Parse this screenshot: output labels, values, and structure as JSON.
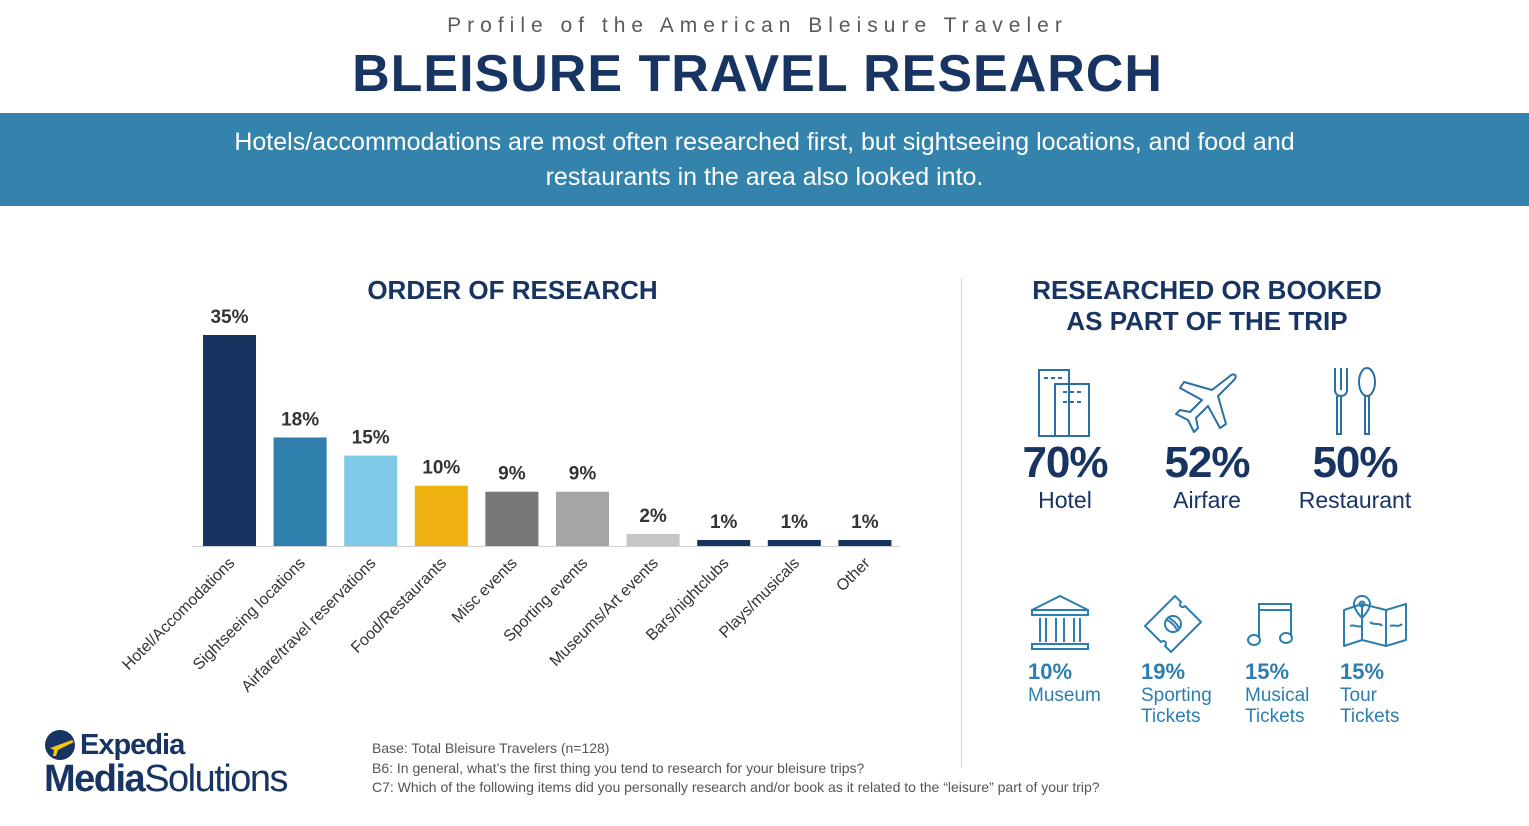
{
  "header": {
    "subtitle": "Profile of the American Bleisure Traveler",
    "title": "BLEISURE TRAVEL RESEARCH"
  },
  "banner": {
    "text": "Hotels/accommodations are most often researched first, but sightseeing locations, and food and restaurants in the area also looked into."
  },
  "chart_data": {
    "type": "bar",
    "title": "ORDER OF RESEARCH",
    "categories": [
      "Hotel/Accomodations",
      "Sightseeing locations",
      "Airfare/travel reservations",
      "Food/Restaurants",
      "Misc events",
      "Sporting events",
      "Museums/Art events",
      "Bars/nightclubs",
      "Plays/musicals",
      "Other"
    ],
    "values": [
      35,
      18,
      15,
      10,
      9,
      9,
      2,
      1,
      1,
      1
    ],
    "labels": [
      "35%",
      "18%",
      "15%",
      "10%",
      "9%",
      "9%",
      "2%",
      "1%",
      "1%",
      "1%"
    ],
    "colors": [
      "#17335f",
      "#2f7fac",
      "#7dc9e7",
      "#f0b210",
      "#777777",
      "#a5a5a5",
      "#c6c6c6",
      "#17335f",
      "#17335f",
      "#17335f"
    ],
    "ylim": [
      0,
      35
    ],
    "grid": false,
    "legend": "none"
  },
  "researched": {
    "heading": "RESEARCHED OR BOOKED AS PART OF THE TRIP",
    "main": [
      {
        "pct": "70%",
        "label": "Hotel",
        "icon": "building-icon"
      },
      {
        "pct": "52%",
        "label": "Airfare",
        "icon": "airplane-icon"
      },
      {
        "pct": "50%",
        "label": "Restaurant",
        "icon": "fork-spoon-icon"
      }
    ],
    "secondary": [
      {
        "pct": "10%",
        "label": "Museum",
        "icon": "museum-icon"
      },
      {
        "pct": "19%",
        "label": "Sporting Tickets",
        "icon": "ticket-icon"
      },
      {
        "pct": "15%",
        "label": "Musical Tickets",
        "icon": "music-note-icon"
      },
      {
        "pct": "15%",
        "label": "Tour Tickets",
        "icon": "map-icon"
      }
    ]
  },
  "footnotes": [
    "Base: Total Bleisure Travelers (n=128)",
    "B6: In general, what’s the first thing you tend to research for your bleisure trips?",
    "C7: Which of the following items did you personally research and/or book as it related to the “leisure” part of your trip?"
  ],
  "logo": {
    "line1": "Expedia",
    "line2a": "Media",
    "line2b": "Solutions"
  }
}
